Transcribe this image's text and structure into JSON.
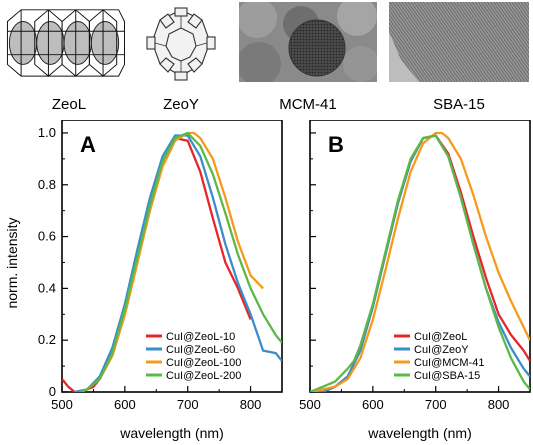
{
  "images": [
    {
      "caption": "ZeoL",
      "icon": "zeolite-L-framework-image"
    },
    {
      "caption": "ZeoY",
      "icon": "zeolite-Y-framework-image"
    },
    {
      "caption": "MCM-41",
      "icon": "mcm41-tem-micrograph"
    },
    {
      "caption": "SBA-15",
      "icon": "sba15-tem-micrograph"
    }
  ],
  "chart_data": [
    {
      "type": "line",
      "panel_label": "A",
      "xlabel": "wavelength (nm)",
      "ylabel": "norm. intensity",
      "xlim": [
        500,
        850
      ],
      "ylim": [
        0,
        1.05
      ],
      "xticks": [
        "500",
        "600",
        "700",
        "800"
      ],
      "yticks": [
        "0",
        "0.2",
        "0.4",
        "0.6",
        "0.8",
        "1.0"
      ],
      "legend_position": "bottom-right",
      "series": [
        {
          "name": "CuI@ZeoL-10",
          "color": "#e8262a",
          "x": [
            500,
            510,
            520,
            530,
            540,
            550,
            560,
            580,
            600,
            620,
            640,
            660,
            680,
            700,
            720,
            740,
            760,
            780,
            800
          ],
          "y": [
            0.05,
            0.02,
            0.0,
            0.0,
            0.01,
            0.02,
            0.05,
            0.14,
            0.3,
            0.5,
            0.71,
            0.88,
            0.98,
            0.97,
            0.85,
            0.67,
            0.5,
            0.4,
            0.28
          ]
        },
        {
          "name": "CuI@ZeoL-60",
          "color": "#3a8ec9",
          "x": [
            520,
            540,
            560,
            580,
            600,
            620,
            640,
            660,
            680,
            700,
            720,
            740,
            760,
            780,
            800,
            820,
            840,
            850
          ],
          "y": [
            0.0,
            0.01,
            0.06,
            0.17,
            0.34,
            0.55,
            0.75,
            0.91,
            0.99,
            0.99,
            0.91,
            0.75,
            0.57,
            0.42,
            0.3,
            0.16,
            0.15,
            0.12
          ]
        },
        {
          "name": "CuI@ZeoL-100",
          "color": "#f59a1d",
          "x": [
            530,
            540,
            560,
            580,
            600,
            620,
            640,
            660,
            680,
            700,
            710,
            720,
            740,
            760,
            780,
            800,
            820
          ],
          "y": [
            0.0,
            0.01,
            0.05,
            0.14,
            0.3,
            0.5,
            0.7,
            0.87,
            0.97,
            1.0,
            1.0,
            0.98,
            0.9,
            0.75,
            0.58,
            0.45,
            0.4
          ]
        },
        {
          "name": "CuI@ZeoL-200",
          "color": "#5db84a",
          "x": [
            530,
            540,
            560,
            580,
            600,
            620,
            640,
            660,
            680,
            700,
            720,
            740,
            760,
            780,
            800,
            820,
            840,
            850
          ],
          "y": [
            0.0,
            0.01,
            0.05,
            0.15,
            0.32,
            0.52,
            0.72,
            0.89,
            0.98,
            1.0,
            0.95,
            0.84,
            0.69,
            0.53,
            0.4,
            0.3,
            0.22,
            0.19
          ]
        }
      ]
    },
    {
      "type": "line",
      "panel_label": "B",
      "xlabel": "wavelength (nm)",
      "ylabel": "",
      "xlim": [
        500,
        850
      ],
      "ylim": [
        0,
        1.05
      ],
      "xticks": [
        "500",
        "600",
        "700",
        "800"
      ],
      "legend_position": "bottom-right",
      "series": [
        {
          "name": "CuI@ZeoL",
          "color": "#e8262a",
          "x": [
            500,
            520,
            540,
            560,
            580,
            600,
            620,
            640,
            660,
            680,
            700,
            720,
            740,
            760,
            780,
            800,
            820,
            840,
            850
          ],
          "y": [
            0.0,
            0.0,
            0.02,
            0.06,
            0.16,
            0.33,
            0.53,
            0.73,
            0.89,
            0.98,
            0.99,
            0.92,
            0.77,
            0.6,
            0.44,
            0.3,
            0.22,
            0.16,
            0.12
          ]
        },
        {
          "name": "CuI@ZeoY",
          "color": "#3a8ec9",
          "x": [
            500,
            520,
            540,
            560,
            580,
            600,
            620,
            640,
            660,
            680,
            700,
            720,
            740,
            760,
            780,
            800,
            820,
            840,
            850
          ],
          "y": [
            0.0,
            0.0,
            0.02,
            0.06,
            0.16,
            0.33,
            0.53,
            0.73,
            0.89,
            0.98,
            0.99,
            0.91,
            0.75,
            0.57,
            0.4,
            0.27,
            0.17,
            0.09,
            0.06
          ]
        },
        {
          "name": "CuI@MCM-41",
          "color": "#f59a1d",
          "x": [
            500,
            520,
            540,
            560,
            580,
            600,
            620,
            640,
            660,
            680,
            700,
            710,
            720,
            740,
            760,
            780,
            800,
            820,
            840,
            850
          ],
          "y": [
            0.0,
            0.01,
            0.02,
            0.05,
            0.13,
            0.28,
            0.47,
            0.67,
            0.85,
            0.96,
            1.0,
            1.0,
            0.98,
            0.9,
            0.76,
            0.6,
            0.46,
            0.35,
            0.25,
            0.2
          ]
        },
        {
          "name": "CuI@SBA-15",
          "color": "#5db84a",
          "x": [
            500,
            520,
            540,
            560,
            570,
            580,
            600,
            620,
            640,
            660,
            680,
            700,
            720,
            740,
            760,
            780,
            800,
            820,
            840,
            850
          ],
          "y": [
            0.0,
            0.02,
            0.04,
            0.09,
            0.12,
            0.18,
            0.34,
            0.54,
            0.74,
            0.9,
            0.98,
            0.99,
            0.91,
            0.75,
            0.57,
            0.4,
            0.25,
            0.13,
            0.04,
            0.01
          ]
        }
      ]
    }
  ]
}
